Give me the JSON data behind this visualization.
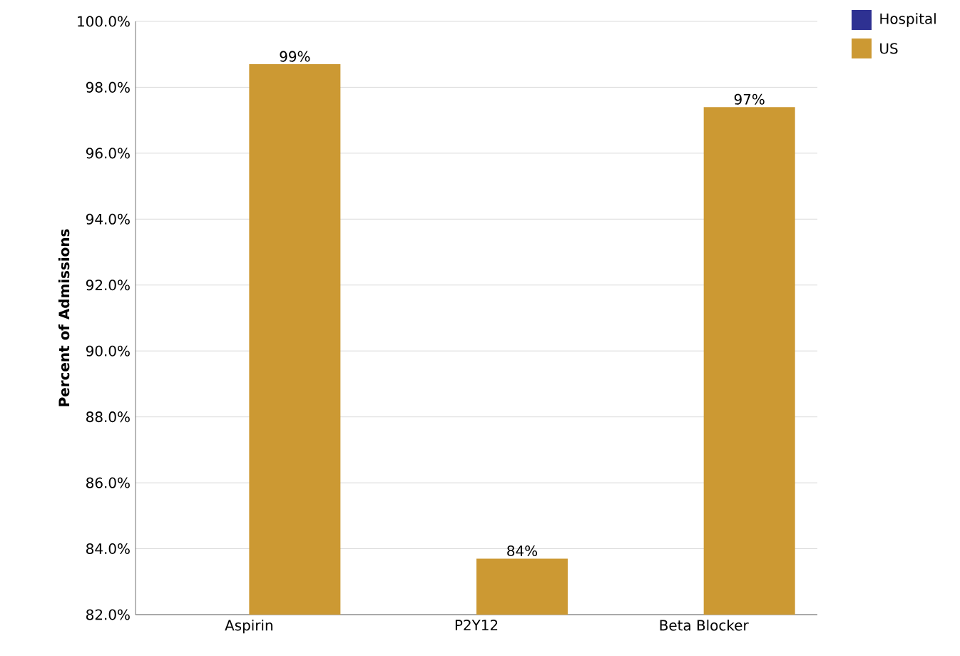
{
  "chart_data": {
    "type": "bar",
    "ylabel": "Percent of Admissions",
    "categories": [
      "Aspirin",
      "P2Y12",
      "Beta Blocker"
    ],
    "series": [
      {
        "name": "Hospital",
        "color": "#2e3192",
        "values": [
          null,
          null,
          null
        ]
      },
      {
        "name": "US",
        "color": "#cc9933",
        "values": [
          98.7,
          83.7,
          97.4
        ],
        "value_labels": [
          "99%",
          "84%",
          "97%"
        ]
      }
    ],
    "ylim": [
      82,
      100
    ],
    "yticks": [
      {
        "value": 82,
        "label": "82.0%"
      },
      {
        "value": 84,
        "label": "84.0%"
      },
      {
        "value": 86,
        "label": "86.0%"
      },
      {
        "value": 88,
        "label": "88.0%"
      },
      {
        "value": 90,
        "label": "90.0%"
      },
      {
        "value": 92,
        "label": "92.0%"
      },
      {
        "value": 94,
        "label": "94.0%"
      },
      {
        "value": 96,
        "label": "96.0%"
      },
      {
        "value": 98,
        "label": "98.0%"
      },
      {
        "value": 100,
        "label": "100.0%"
      }
    ],
    "grid": "y",
    "legend": "top right"
  }
}
